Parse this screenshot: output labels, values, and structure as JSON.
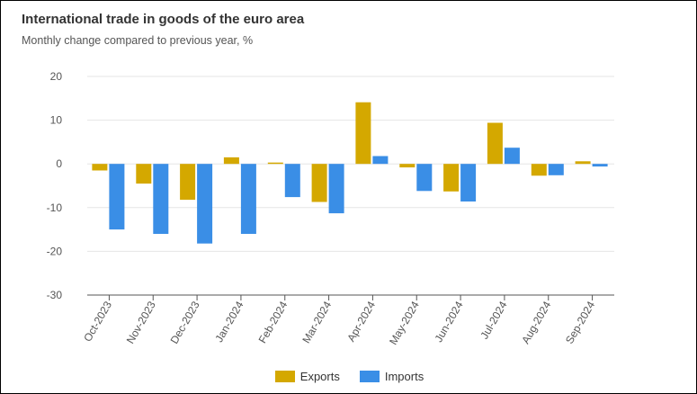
{
  "header": {
    "title": "International trade in goods of the euro area",
    "subtitle": "Monthly change compared to previous year, %"
  },
  "colors": {
    "exports": "#d4a800",
    "imports": "#3a8ee6",
    "grid": "#e6e6e6",
    "axis": "#555555"
  },
  "chart_data": {
    "type": "bar",
    "title": "International trade in goods of the euro area",
    "subtitle": "Monthly change compared to previous year, %",
    "xlabel": "",
    "ylabel": "",
    "ylim": [
      -30,
      20
    ],
    "yticks": [
      -30,
      -20,
      -10,
      0,
      10,
      20
    ],
    "grid": true,
    "legend_position": "bottom-center",
    "categories": [
      "Oct-2023",
      "Nov-2023",
      "Dec-2023",
      "Jan-2024",
      "Feb-2024",
      "Mar-2024",
      "Apr-2024",
      "May-2024",
      "Jun-2024",
      "Jul-2024",
      "Aug-2024",
      "Sep-2024"
    ],
    "series": [
      {
        "name": "Exports",
        "values": [
          -1.5,
          -4.5,
          -8.2,
          1.5,
          0.3,
          -8.7,
          14.1,
          -0.8,
          -6.3,
          9.4,
          -2.7,
          0.6
        ]
      },
      {
        "name": "Imports",
        "values": [
          -15.0,
          -16.0,
          -18.2,
          -16.0,
          -7.6,
          -11.3,
          1.8,
          -6.2,
          -8.6,
          3.7,
          -2.6,
          -0.6
        ]
      }
    ]
  }
}
